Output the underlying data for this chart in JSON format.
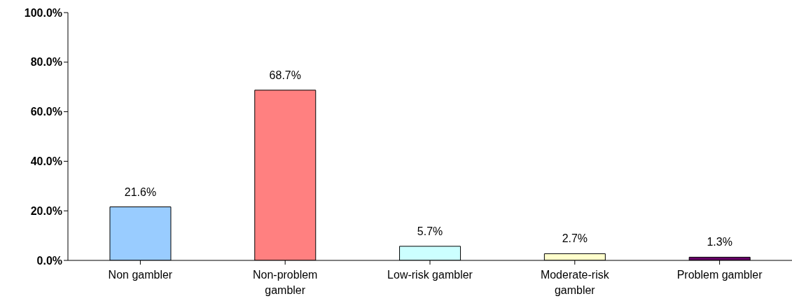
{
  "chart_data": {
    "type": "bar",
    "categories": [
      "Non gambler",
      "Non-problem gambler",
      "Low-risk gambler",
      "Moderate-risk gambler",
      "Problem gambler"
    ],
    "values": [
      21.6,
      68.7,
      5.7,
      2.7,
      1.3
    ],
    "colors": [
      "#99ccff",
      "#ff8080",
      "#ccffff",
      "#ffffcc",
      "#660066"
    ],
    "value_labels": [
      "21.6%",
      "68.7%",
      "5.7%",
      "2.7%",
      "1.3%"
    ],
    "ylim": [
      0,
      100
    ],
    "yticks": [
      {
        "value": 0,
        "label": "0.0%"
      },
      {
        "value": 20,
        "label": "20.0%"
      },
      {
        "value": 40,
        "label": "40.0%"
      },
      {
        "value": 60,
        "label": "60.0%"
      },
      {
        "value": 80,
        "label": "80.0%"
      },
      {
        "value": 100,
        "label": "100.0%"
      }
    ],
    "grid": false,
    "legend": false
  }
}
